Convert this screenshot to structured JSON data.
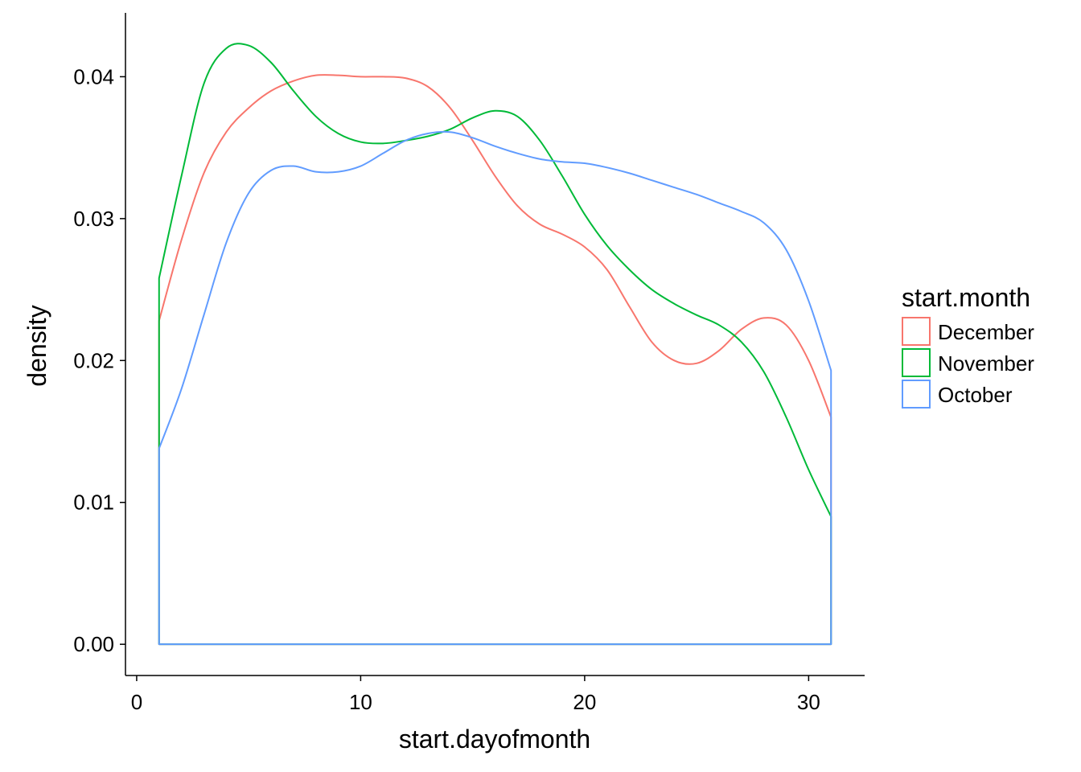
{
  "chart_data": {
    "type": "line",
    "subtype": "density",
    "xlabel": "start.dayofmonth",
    "ylabel": "density",
    "xlim": [
      -0.5,
      32.5
    ],
    "ylim": [
      -0.0022,
      0.0445
    ],
    "x_ticks": [
      0,
      10,
      20,
      30
    ],
    "x_tick_labels": [
      "0",
      "10",
      "20",
      "30"
    ],
    "y_ticks": [
      0,
      0.01,
      0.02,
      0.03,
      0.04
    ],
    "y_tick_labels": [
      "0.00",
      "0.01",
      "0.02",
      "0.03",
      "0.04"
    ],
    "grid": false,
    "legend": {
      "title": "start.month",
      "position": "right"
    },
    "series": [
      {
        "name": "December",
        "color": "#F8766D",
        "x": [
          1,
          2,
          3,
          4,
          5,
          6,
          7,
          8,
          9,
          10,
          11,
          12,
          13,
          14,
          15,
          16,
          17,
          18,
          19,
          20,
          21,
          22,
          23,
          24,
          25,
          26,
          27,
          28,
          29,
          30,
          31
        ],
        "y": [
          0.0228,
          0.0285,
          0.0332,
          0.0361,
          0.0378,
          0.039,
          0.0397,
          0.0401,
          0.0401,
          0.04,
          0.04,
          0.0399,
          0.0393,
          0.0378,
          0.0355,
          0.033,
          0.0309,
          0.0296,
          0.0289,
          0.028,
          0.0264,
          0.0238,
          0.0213,
          0.02,
          0.0198,
          0.0207,
          0.0222,
          0.023,
          0.0225,
          0.02,
          0.016
        ]
      },
      {
        "name": "November",
        "color": "#00BA38",
        "x": [
          1,
          2,
          3,
          4,
          5,
          6,
          7,
          8,
          9,
          10,
          11,
          12,
          13,
          14,
          15,
          16,
          17,
          18,
          19,
          20,
          21,
          22,
          23,
          24,
          25,
          26,
          27,
          28,
          29,
          30,
          31
        ],
        "y": [
          0.0258,
          0.033,
          0.0395,
          0.042,
          0.0422,
          0.041,
          0.039,
          0.0372,
          0.036,
          0.0354,
          0.0353,
          0.0355,
          0.0358,
          0.0363,
          0.0371,
          0.0376,
          0.0372,
          0.0355,
          0.033,
          0.0303,
          0.0281,
          0.0264,
          0.025,
          0.024,
          0.0232,
          0.0225,
          0.0213,
          0.0192,
          0.016,
          0.0123,
          0.009
        ]
      },
      {
        "name": "October",
        "color": "#619CFF",
        "x": [
          1,
          2,
          3,
          4,
          5,
          6,
          7,
          8,
          9,
          10,
          11,
          12,
          13,
          14,
          15,
          16,
          17,
          18,
          19,
          20,
          21,
          22,
          23,
          24,
          25,
          26,
          27,
          28,
          29,
          30,
          31
        ],
        "y": [
          0.0138,
          0.018,
          0.0232,
          0.0283,
          0.0318,
          0.0334,
          0.0337,
          0.0333,
          0.0333,
          0.0337,
          0.0346,
          0.0355,
          0.036,
          0.0361,
          0.0357,
          0.0351,
          0.0346,
          0.0342,
          0.034,
          0.0339,
          0.0336,
          0.0332,
          0.0327,
          0.0322,
          0.0317,
          0.0311,
          0.0305,
          0.0297,
          0.0278,
          0.0242,
          0.0193
        ]
      }
    ]
  }
}
